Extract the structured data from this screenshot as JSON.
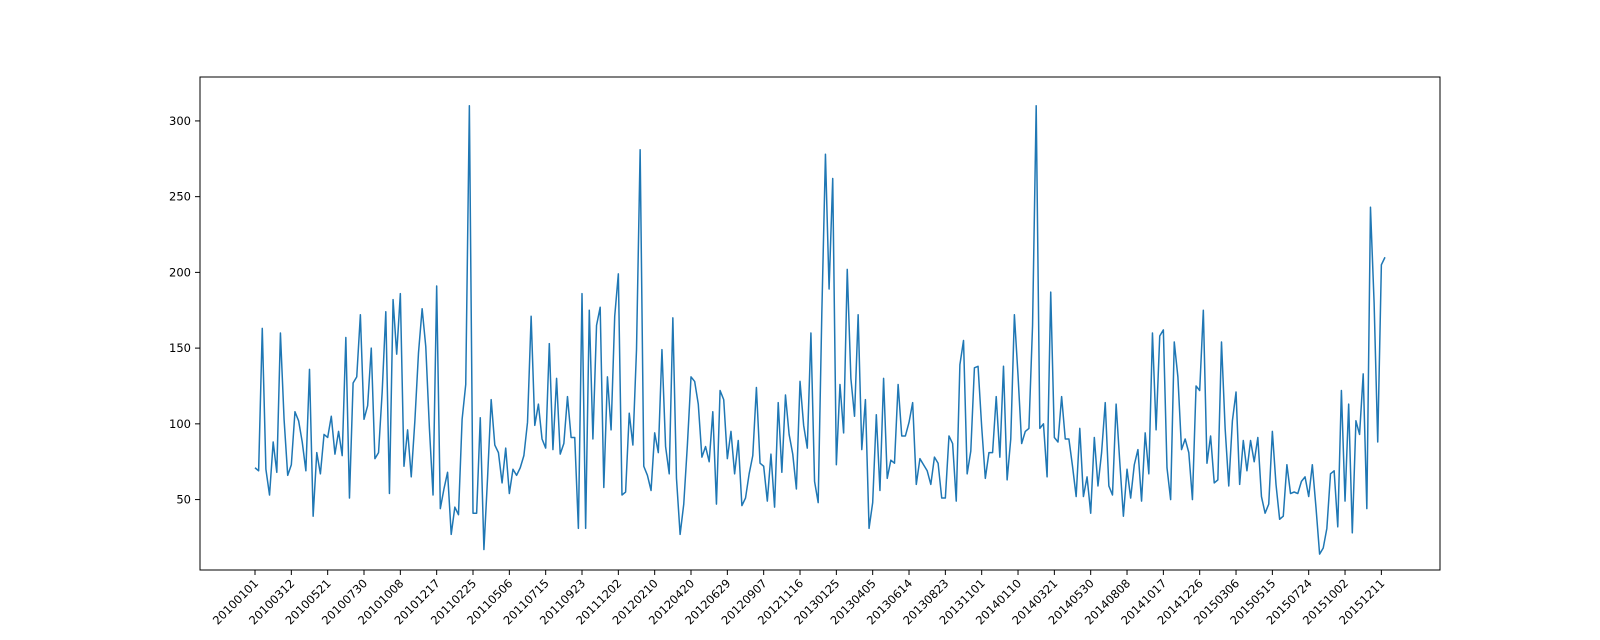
{
  "chart_data": {
    "type": "line",
    "title": "",
    "xlabel": "",
    "ylabel": "",
    "grid": false,
    "x_tick_labels": [
      "20100101",
      "20100312",
      "20100521",
      "20100730",
      "20101008",
      "20101217",
      "20110225",
      "20110506",
      "20110715",
      "20110923",
      "20111202",
      "20120210",
      "20120420",
      "20120629",
      "20120907",
      "20121116",
      "20130125",
      "20130405",
      "20130614",
      "20130823",
      "20131101",
      "20140110",
      "20140321",
      "20140530",
      "20140808",
      "20141017",
      "20141226",
      "20150306",
      "20150515",
      "20150724",
      "20151002",
      "20151211"
    ],
    "y_ticks": [
      50,
      100,
      150,
      200,
      250,
      300
    ],
    "ylim": [
      3.5,
      329
    ],
    "series": [
      {
        "color": "#1f77b4",
        "values": [
          71,
          69,
          163,
          70,
          53,
          88,
          68,
          160,
          103,
          66,
          73,
          108,
          102,
          88,
          69,
          136,
          39,
          81,
          67,
          93,
          91,
          105,
          80,
          95,
          79,
          157,
          51,
          127,
          131,
          172,
          103,
          112,
          150,
          77,
          81,
          121,
          174,
          54,
          182,
          146,
          186,
          72,
          96,
          65,
          102,
          147,
          176,
          151,
          97,
          53,
          191,
          44,
          57,
          68,
          27,
          45,
          40,
          103,
          126,
          310,
          41,
          41,
          104,
          17,
          64,
          116,
          86,
          81,
          61,
          84,
          54,
          70,
          66,
          71,
          79,
          101,
          171,
          99,
          113,
          90,
          84,
          153,
          83,
          130,
          80,
          87,
          118,
          91,
          91,
          31,
          186,
          31,
          175,
          90,
          165,
          177,
          58,
          131,
          96,
          171,
          199,
          53,
          55,
          107,
          86,
          149,
          281,
          72,
          66,
          56,
          94,
          81,
          149,
          85,
          67,
          170,
          64,
          27,
          47,
          86,
          131,
          128,
          113,
          78,
          85,
          75,
          108,
          47,
          122,
          116,
          77,
          95,
          67,
          89,
          46,
          51,
          67,
          79,
          124,
          74,
          72,
          49,
          80,
          45,
          114,
          68,
          119,
          93,
          80,
          57,
          128,
          99,
          84,
          160,
          62,
          48,
          173,
          278,
          189,
          262,
          73,
          126,
          94,
          202,
          130,
          105,
          172,
          83,
          116,
          31,
          48,
          106,
          56,
          130,
          64,
          76,
          74,
          126,
          92,
          92,
          101,
          114,
          60,
          77,
          73,
          69,
          60,
          78,
          74,
          51,
          51,
          92,
          87,
          49,
          139,
          155,
          67,
          82,
          137,
          138,
          98,
          64,
          81,
          81,
          118,
          78,
          138,
          63,
          90,
          172,
          132,
          87,
          95,
          97,
          165,
          310,
          97,
          100,
          65,
          187,
          91,
          88,
          118,
          90,
          90,
          72,
          52,
          97,
          52,
          65,
          41,
          91,
          59,
          81,
          114,
          59,
          53,
          113,
          75,
          39,
          70,
          51,
          73,
          83,
          49,
          94,
          67,
          160,
          96,
          158,
          162,
          71,
          50,
          154,
          131,
          83,
          90,
          81,
          50,
          125,
          122,
          175,
          74,
          92,
          61,
          63,
          154,
          97,
          59,
          102,
          121,
          60,
          89,
          69,
          89,
          75,
          91,
          52,
          41,
          47,
          95,
          60,
          37,
          39,
          73,
          54,
          55,
          54,
          62,
          65,
          52,
          73,
          45,
          14,
          18,
          31,
          67,
          69,
          32,
          122,
          49,
          113,
          28,
          102,
          93,
          133,
          44,
          243,
          180,
          88,
          205,
          210
        ]
      }
    ]
  }
}
